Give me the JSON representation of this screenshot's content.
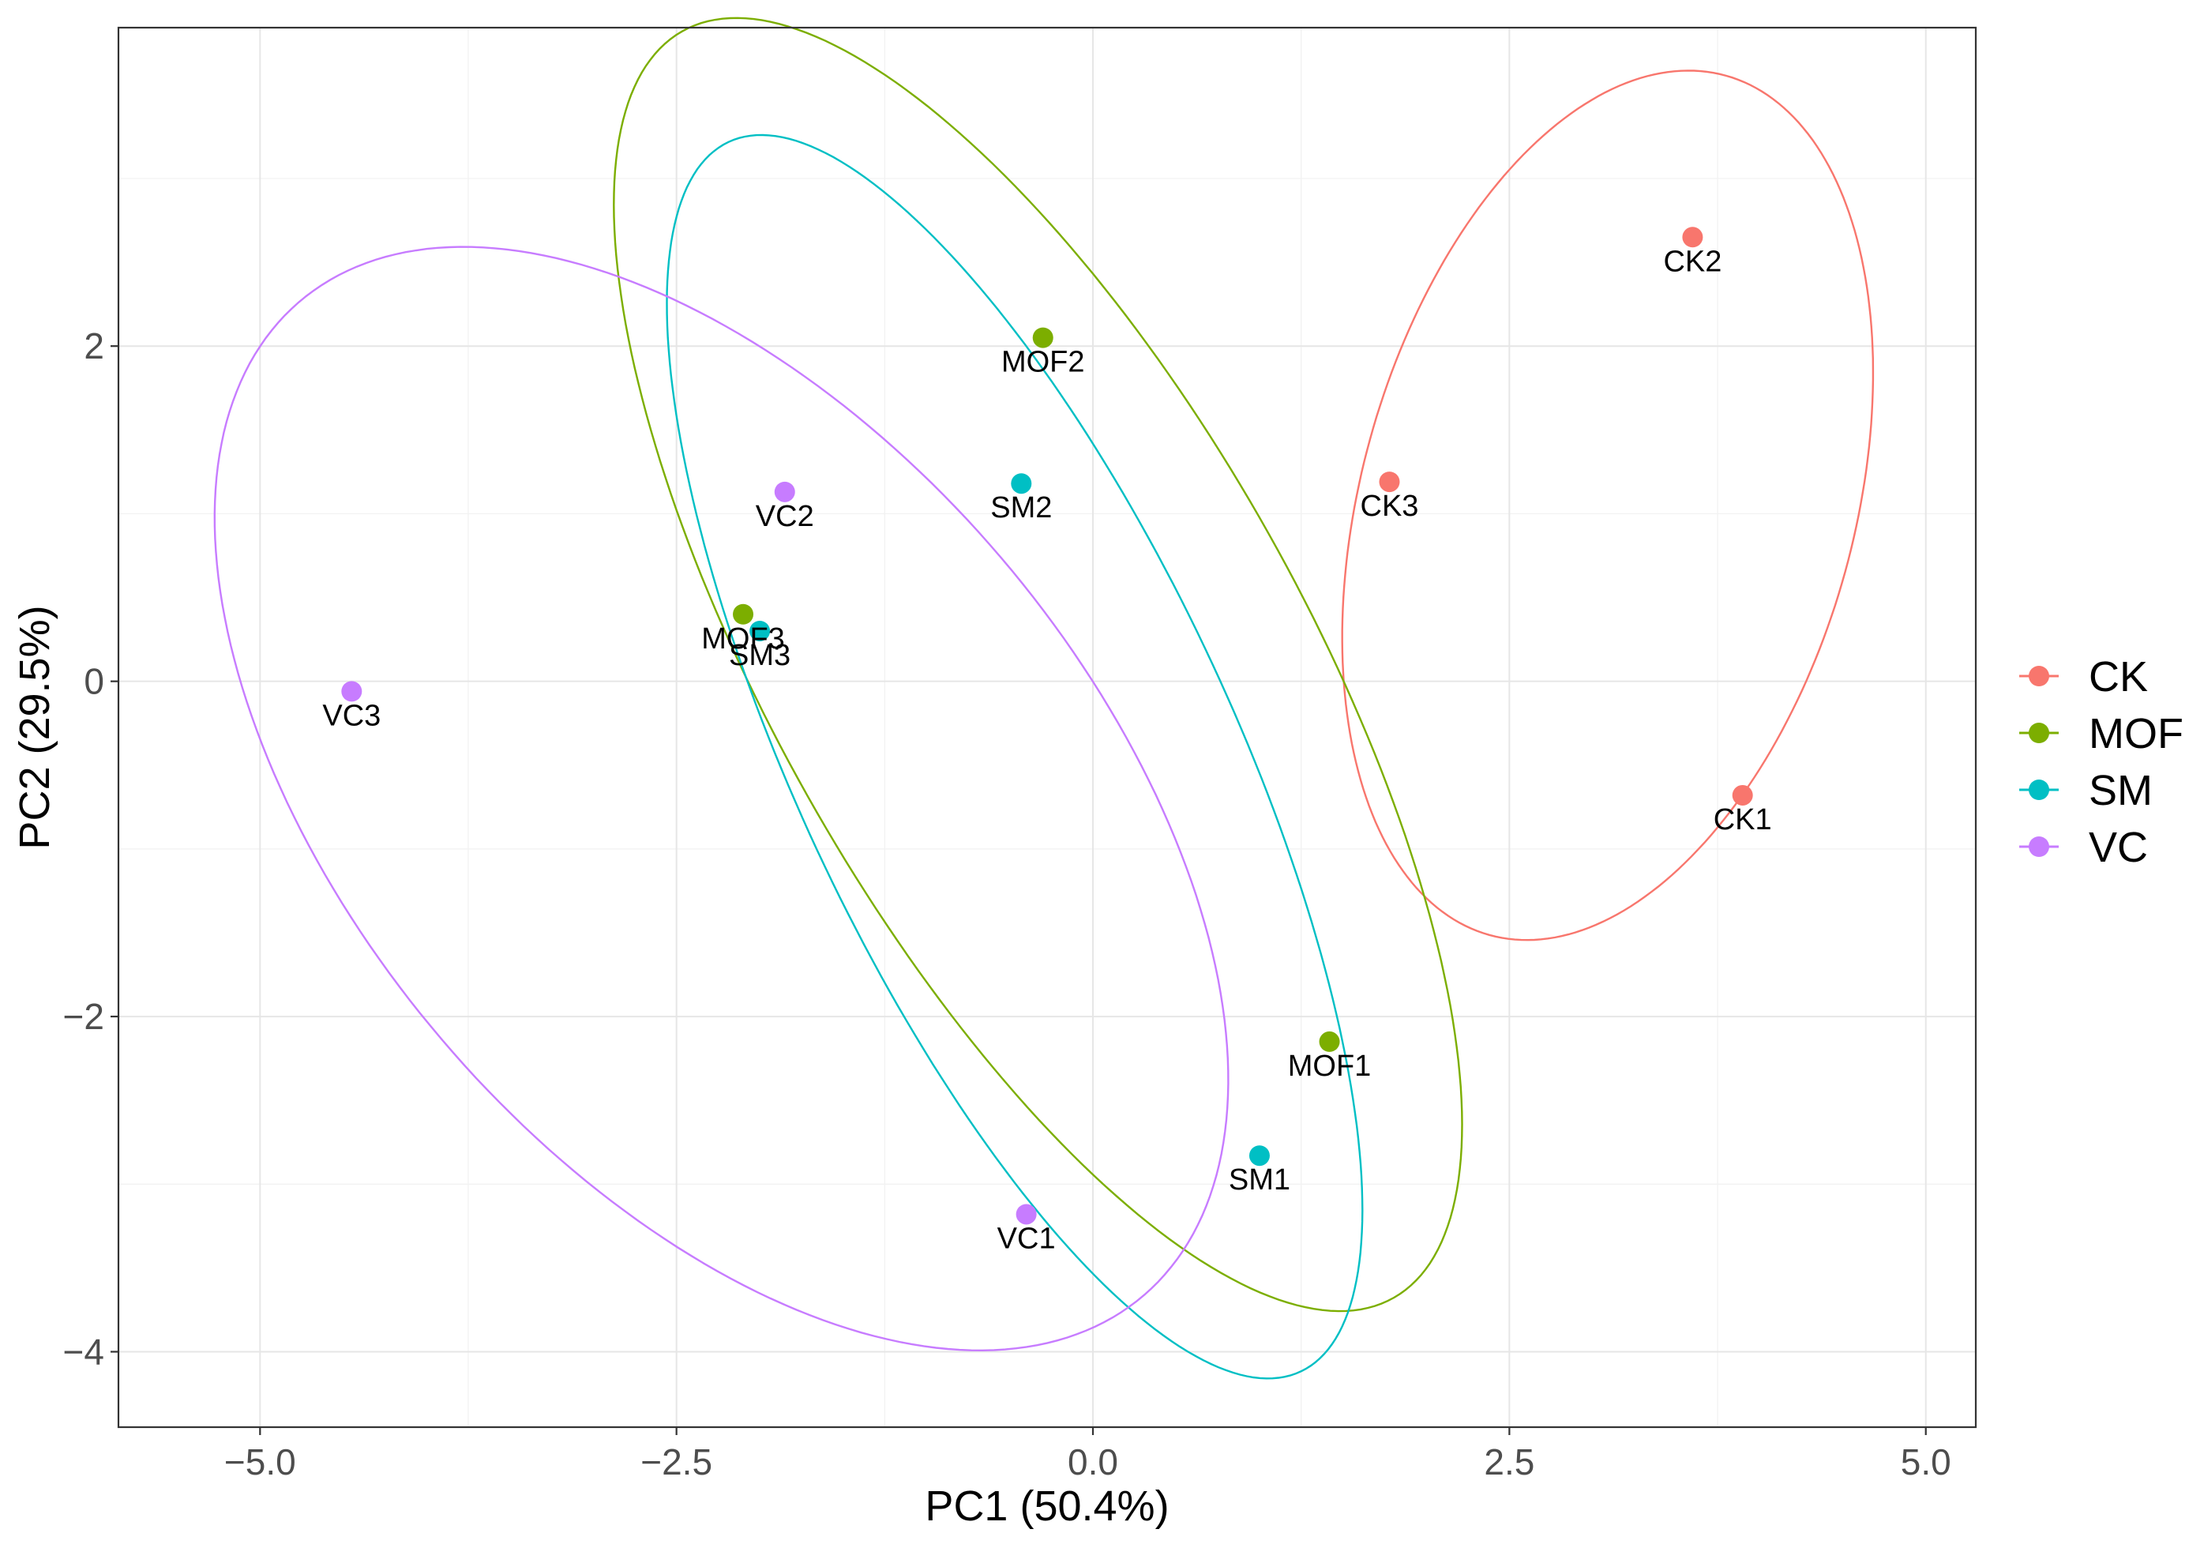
{
  "chart_data": {
    "type": "scatter",
    "title": "",
    "xlabel": "PC1 (50.4%)",
    "ylabel": "PC2 (29.5%)",
    "xlim": [
      -5.85,
      5.3
    ],
    "ylim": [
      -4.45,
      3.9
    ],
    "xticks": [
      -5.0,
      -2.5,
      0.0,
      2.5,
      5.0
    ],
    "xtick_labels": [
      "−5.0",
      "−2.5",
      "0.0",
      "2.5",
      "5.0"
    ],
    "yticks": [
      -4,
      -2,
      0,
      2
    ],
    "ytick_labels": [
      "−4",
      "−2",
      "0",
      "2"
    ],
    "grid": true,
    "legend_position": "right",
    "series": [
      {
        "name": "CK",
        "color": "#F8766D",
        "points": [
          {
            "label": "CK2",
            "x": 3.6,
            "y": 2.65
          },
          {
            "label": "CK3",
            "x": 1.78,
            "y": 1.19
          },
          {
            "label": "CK1",
            "x": 3.9,
            "y": -0.68
          }
        ],
        "ellipse": {
          "cx": 3.09,
          "cy": 1.05,
          "a": 2.66,
          "b": 1.48,
          "angle_deg": 74.5
        }
      },
      {
        "name": "MOF",
        "color": "#7CAE00",
        "points": [
          {
            "label": "MOF2",
            "x": -0.3,
            "y": 2.05
          },
          {
            "label": "MOF3",
            "x": -2.1,
            "y": 0.4
          },
          {
            "label": "MOF1",
            "x": 1.42,
            "y": -2.15
          }
        ],
        "ellipse": {
          "cx": -0.33,
          "cy": 0.1,
          "a": 4.34,
          "b": 1.59,
          "angle_deg": -60.5
        }
      },
      {
        "name": "SM",
        "color": "#00BFC4",
        "points": [
          {
            "label": "SM2",
            "x": -0.43,
            "y": 1.18
          },
          {
            "label": "SM3",
            "x": -2.0,
            "y": 0.3
          },
          {
            "label": "SM1",
            "x": 1.0,
            "y": -2.83
          }
        ],
        "ellipse": {
          "cx": -0.47,
          "cy": -0.45,
          "a": 4.05,
          "b": 1.31,
          "angle_deg": -64.9
        }
      },
      {
        "name": "VC",
        "color": "#C77CFF",
        "points": [
          {
            "label": "VC2",
            "x": -1.85,
            "y": 1.13
          },
          {
            "label": "VC3",
            "x": -4.45,
            "y": -0.06
          },
          {
            "label": "VC1",
            "x": -0.4,
            "y": -3.18
          }
        ],
        "ellipse": {
          "cx": -2.23,
          "cy": -0.7,
          "a": 3.9,
          "b": 2.21,
          "angle_deg": -49.4
        }
      }
    ]
  }
}
